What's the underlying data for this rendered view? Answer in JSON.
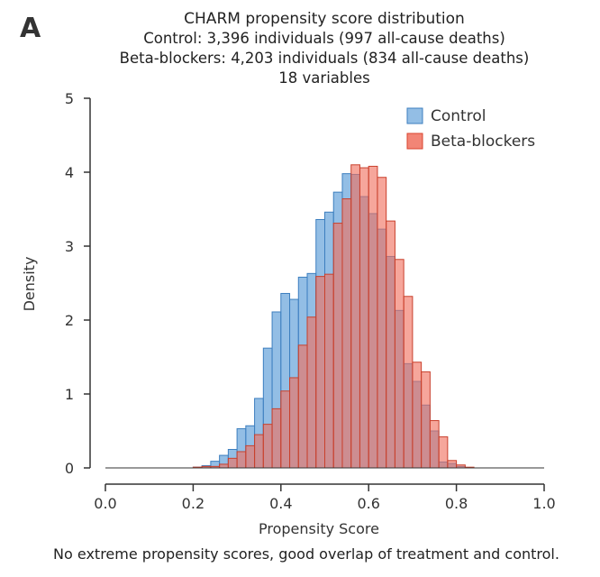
{
  "panel_label": "A",
  "chart_data": {
    "type": "bar",
    "title": "CHARM propensity score distribution",
    "subtitle_lines": [
      "Control: 3,396 individuals (997 all-cause deaths)",
      "Beta-blockers: 4,203 individuals (834 all-cause deaths)",
      "18 variables"
    ],
    "xlabel": "Propensity Score",
    "ylabel": "Density",
    "xlim": [
      0.0,
      1.0
    ],
    "ylim": [
      0,
      5
    ],
    "xticks": [
      "0.0",
      "0.2",
      "0.4",
      "0.6",
      "0.8",
      "1.0"
    ],
    "yticks": [
      "0",
      "1",
      "2",
      "3",
      "4",
      "5"
    ],
    "bin_width": 0.02,
    "bin_starts": [
      0.2,
      0.22,
      0.24,
      0.26,
      0.28,
      0.3,
      0.32,
      0.34,
      0.36,
      0.38,
      0.4,
      0.42,
      0.44,
      0.46,
      0.48,
      0.5,
      0.52,
      0.54,
      0.56,
      0.58,
      0.6,
      0.62,
      0.64,
      0.66,
      0.68,
      0.7,
      0.72,
      0.74,
      0.76,
      0.78,
      0.8,
      0.82
    ],
    "series": [
      {
        "name": "Control",
        "color": "#6fa8dc",
        "values": [
          0.01,
          0.03,
          0.09,
          0.17,
          0.25,
          0.53,
          0.57,
          0.94,
          1.62,
          2.11,
          2.36,
          2.28,
          2.58,
          2.63,
          3.36,
          3.46,
          3.73,
          3.98,
          3.97,
          3.67,
          3.44,
          3.23,
          2.86,
          2.13,
          1.41,
          1.17,
          0.85,
          0.5,
          0.08,
          0.06,
          0.02,
          0.0
        ]
      },
      {
        "name": "Beta-blockers",
        "color": "#f0705e",
        "values": [
          0.01,
          0.02,
          0.02,
          0.05,
          0.13,
          0.22,
          0.3,
          0.45,
          0.59,
          0.8,
          1.04,
          1.22,
          1.66,
          2.04,
          2.59,
          2.62,
          3.31,
          3.64,
          4.1,
          4.06,
          4.08,
          3.93,
          3.34,
          2.82,
          2.32,
          1.43,
          1.3,
          0.64,
          0.42,
          0.1,
          0.04,
          0.01
        ]
      }
    ],
    "legend_position": "top-right"
  },
  "footnote": "No extreme propensity scores, good overlap of treatment and control."
}
